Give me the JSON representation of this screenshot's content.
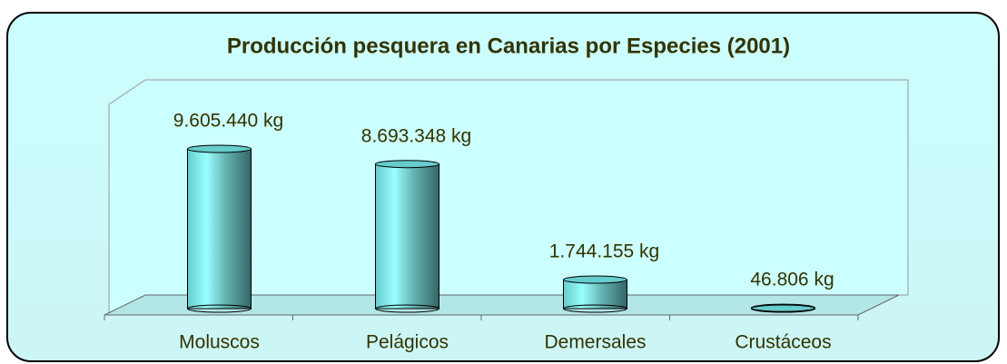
{
  "chart_data": {
    "type": "bar",
    "title": "Producción pesquera en Canarias por Especies (2001)",
    "categories": [
      "Moluscos",
      "Pelágicos",
      "Demersales",
      "Crustáceos"
    ],
    "values": [
      9605440,
      8693348,
      1744155,
      46806
    ],
    "value_labels": [
      "9.605.440 kg",
      "8.693.348 kg",
      "1.744.155 kg",
      "46.806 kg"
    ],
    "color": "#66cccc"
  }
}
